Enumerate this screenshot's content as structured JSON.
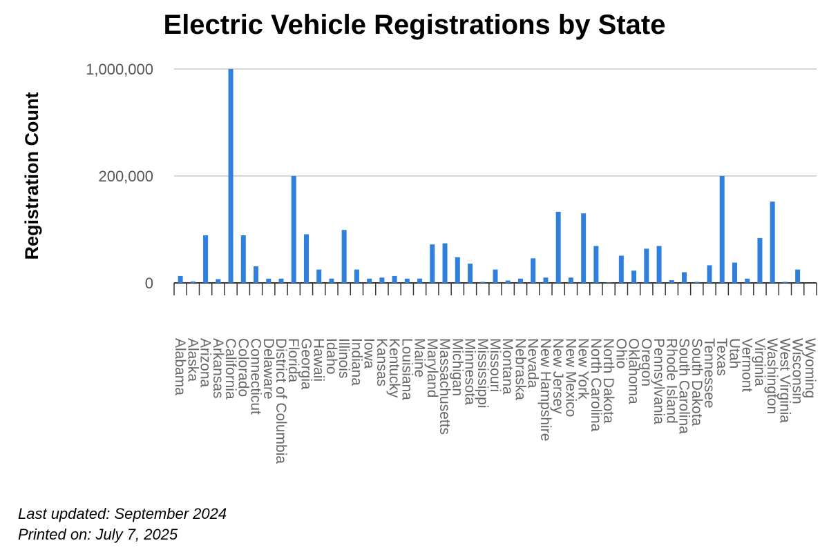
{
  "chart_data": {
    "type": "bar",
    "title": "Electric Vehicle Registrations by State",
    "xlabel": "",
    "ylabel": "Registration Count",
    "y_ticks": [
      "0",
      "200,000",
      "1,000,000"
    ],
    "grid": true,
    "legend": "none",
    "bar_color": "#2f80dc",
    "categories": [
      "Alabama",
      "Alaska",
      "Arizona",
      "Arkansas",
      "California",
      "Colorado",
      "Connecticut",
      "Delaware",
      "District of Columbia",
      "Florida",
      "Georgia",
      "Hawaii",
      "Idaho",
      "Illinois",
      "Indiana",
      "Iowa",
      "Kansas",
      "Kentucky",
      "Louisiana",
      "Maine",
      "Maryland",
      "Massachusetts",
      "Michigan",
      "Minnesota",
      "Mississippi",
      "Missouri",
      "Montana",
      "Nebraska",
      "Nevada",
      "New Hampshire",
      "New Jersey",
      "New Mexico",
      "New York",
      "North Carolina",
      "North Dakota",
      "Ohio",
      "Oklahoma",
      "Oregon",
      "Pennsylvania",
      "Rhode Island",
      "South Carolina",
      "South Dakota",
      "Tennessee",
      "Texas",
      "Utah",
      "Vermont",
      "Virginia",
      "Washington",
      "West Virginia",
      "Wisconsin",
      "Wyoming"
    ],
    "values": [
      13000,
      2700,
      89000,
      7000,
      1000000,
      89000,
      31000,
      8000,
      8000,
      200000,
      91000,
      25000,
      8000,
      99000,
      25000,
      8000,
      10000,
      13000,
      8000,
      8000,
      72000,
      74000,
      48000,
      36000,
      2000,
      25000,
      4500,
      8000,
      46000,
      10000,
      133000,
      10000,
      130000,
      69000,
      1000,
      51000,
      23000,
      64000,
      69000,
      5000,
      20000,
      2000,
      33000,
      200000,
      38000,
      8000,
      84000,
      152000,
      2000,
      25000,
      0
    ]
  },
  "footer": {
    "updated": "Last updated: September 2024",
    "printed": "Printed on: July 7, 2025"
  }
}
